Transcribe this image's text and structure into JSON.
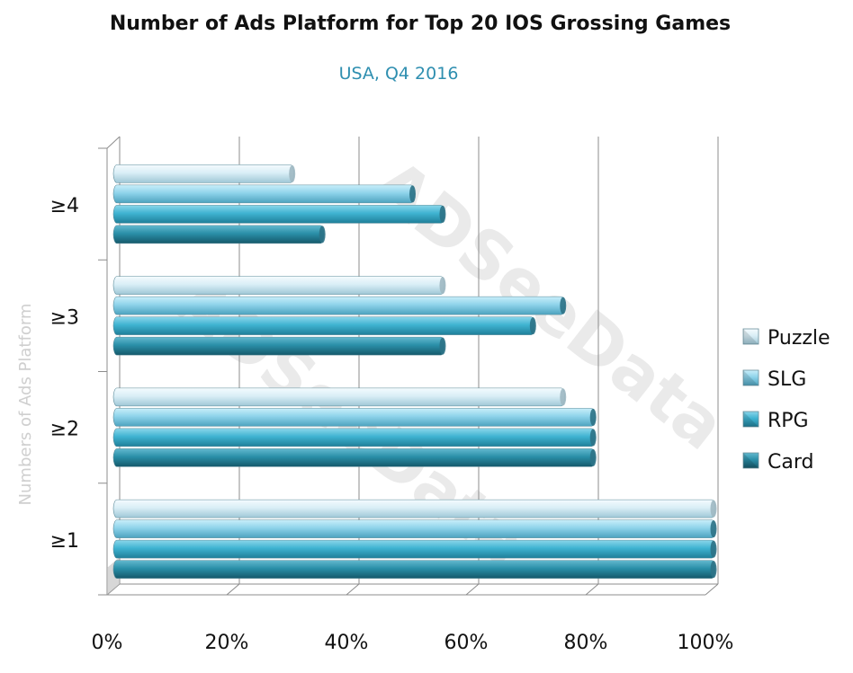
{
  "chart_data": {
    "type": "bar",
    "orientation": "horizontal",
    "title": "Number of Ads Platform for Top 20 IOS Grossing Games",
    "subtitle": "USA, Q4 2016",
    "ylabel": "Numbers of Ads Platform",
    "xlabel": "",
    "categories": [
      "≥1",
      "≥2",
      "≥3",
      "≥4"
    ],
    "series": [
      {
        "name": "Puzzle",
        "values": [
          1.0,
          0.75,
          0.55,
          0.3
        ]
      },
      {
        "name": "SLG",
        "values": [
          1.0,
          0.8,
          0.75,
          0.5
        ]
      },
      {
        "name": "RPG",
        "values": [
          1.0,
          0.8,
          0.7,
          0.55
        ]
      },
      {
        "name": "Card",
        "values": [
          1.0,
          0.8,
          0.55,
          0.35
        ]
      }
    ],
    "xlim": [
      0,
      1
    ],
    "x_ticks": [
      "0%",
      "20%",
      "40%",
      "60%",
      "80%",
      "100%"
    ],
    "grid": true,
    "legend_position": "right",
    "watermark": "ADSeeData",
    "colors": {
      "Puzzle": "#cfe8f2",
      "SLG": "#8ed3ea",
      "RPG": "#3fb3d1",
      "Card": "#2a8fa8"
    }
  }
}
